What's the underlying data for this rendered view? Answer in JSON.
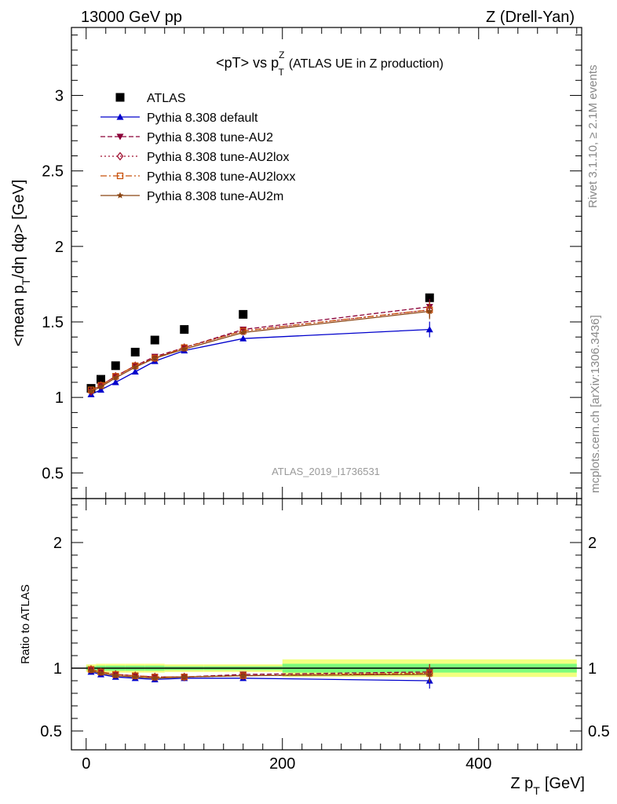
{
  "header": {
    "left": "13000 GeV pp",
    "right": "Z (Drell-Yan)"
  },
  "side": {
    "rivet": "Rivet 3.1.10, ≥ 2.1M events",
    "mcplots": "mcplots.cern.ch [arXiv:1306.3436]"
  },
  "watermark": "ATLAS_2019_I1736531",
  "colors": {
    "atlas": "#000000",
    "default": "#0000cc",
    "au2": "#8b0038",
    "au2lox": "#a01030",
    "au2loxx": "#c8500a",
    "au2m": "#8b4513",
    "band_inner": "#7cfc7c",
    "band_outer": "#f2ff80"
  },
  "chart_data": [
    {
      "type": "scatter",
      "title": "<pT> vs p_T^Z (ATLAS UE in Z production)",
      "title_main": "<pT> vs p",
      "title_sup": "Z",
      "title_sub": "T",
      "title_rest": "(ATLAS UE in Z production)",
      "ylabel": "<mean p_T/dη dφ> [GeV]",
      "ylabel_a": "<mean p",
      "ylabel_sub": "T",
      "ylabel_b": "/dη dφ> [GeV]",
      "ylim": [
        0.33,
        3.45
      ],
      "xlim": [
        -15,
        505
      ],
      "yticks": [
        "0.5",
        "1",
        "1.5",
        "2",
        "2.5",
        "3"
      ],
      "legend_position": "top-left",
      "series": [
        {
          "name": "ATLAS",
          "marker": "square",
          "x": [
            5,
            15,
            30,
            50,
            70,
            100,
            160,
            350
          ],
          "y": [
            1.06,
            1.12,
            1.21,
            1.3,
            1.38,
            1.45,
            1.55,
            1.66
          ]
        },
        {
          "name": "Pythia 8.308 default",
          "marker": "triangle-up",
          "dash": "solid",
          "x": [
            5,
            15,
            30,
            50,
            70,
            100,
            160,
            350
          ],
          "y": [
            1.02,
            1.05,
            1.1,
            1.17,
            1.24,
            1.31,
            1.39,
            1.45
          ]
        },
        {
          "name": "Pythia 8.308 tune-AU2",
          "marker": "triangle-down",
          "dash": "dashed",
          "x": [
            5,
            15,
            30,
            50,
            70,
            100,
            160,
            350
          ],
          "y": [
            1.04,
            1.08,
            1.14,
            1.21,
            1.27,
            1.33,
            1.45,
            1.6
          ]
        },
        {
          "name": "Pythia 8.308 tune-AU2lox",
          "marker": "diamond",
          "dash": "dotted",
          "x": [
            5,
            15,
            30,
            50,
            70,
            100,
            160,
            350
          ],
          "y": [
            1.04,
            1.08,
            1.14,
            1.21,
            1.26,
            1.33,
            1.44,
            1.58
          ]
        },
        {
          "name": "Pythia 8.308 tune-AU2loxx",
          "marker": "square-open",
          "dash": "dashdot",
          "x": [
            5,
            15,
            30,
            50,
            70,
            100,
            160,
            350
          ],
          "y": [
            1.05,
            1.08,
            1.14,
            1.21,
            1.26,
            1.33,
            1.44,
            1.58
          ]
        },
        {
          "name": "Pythia 8.308 tune-AU2m",
          "marker": "star",
          "dash": "solid",
          "x": [
            5,
            15,
            30,
            50,
            70,
            100,
            160,
            350
          ],
          "y": [
            1.04,
            1.07,
            1.13,
            1.2,
            1.26,
            1.32,
            1.43,
            1.57
          ]
        }
      ]
    },
    {
      "type": "scatter",
      "ylabel": "Ratio to ATLAS",
      "xlabel": "Z p_T [GeV]",
      "xlabel_a": "Z p",
      "xlabel_sub": "T",
      "xlabel_b": "[GeV]",
      "ylim": [
        0.35,
        2.35
      ],
      "xlim": [
        -15,
        505
      ],
      "yticks": [
        "0.5",
        "1",
        "2"
      ],
      "xticks": [
        "0",
        "200",
        "400"
      ],
      "band": [
        {
          "x0": 0,
          "x1": 10,
          "inner": 0.015,
          "outer": 0.03
        },
        {
          "x0": 10,
          "x1": 20,
          "inner": 0.02,
          "outer": 0.035
        },
        {
          "x0": 20,
          "x1": 40,
          "inner": 0.02,
          "outer": 0.035
        },
        {
          "x0": 40,
          "x1": 60,
          "inner": 0.02,
          "outer": 0.035
        },
        {
          "x0": 60,
          "x1": 80,
          "inner": 0.02,
          "outer": 0.035
        },
        {
          "x0": 80,
          "x1": 120,
          "inner": 0.015,
          "outer": 0.03
        },
        {
          "x0": 120,
          "x1": 200,
          "inner": 0.015,
          "outer": 0.03
        },
        {
          "x0": 200,
          "x1": 500,
          "inner": 0.035,
          "outer": 0.07
        }
      ],
      "series": [
        {
          "name": "Pythia 8.308 default",
          "x": [
            5,
            15,
            30,
            50,
            70,
            100,
            160,
            350
          ],
          "y": [
            0.97,
            0.95,
            0.93,
            0.92,
            0.91,
            0.92,
            0.92,
            0.9
          ]
        },
        {
          "name": "Pythia 8.308 tune-AU2",
          "x": [
            5,
            15,
            30,
            50,
            70,
            100,
            160,
            350
          ],
          "y": [
            0.99,
            0.97,
            0.95,
            0.94,
            0.93,
            0.93,
            0.95,
            0.97
          ]
        },
        {
          "name": "Pythia 8.308 tune-AU2lox",
          "x": [
            5,
            15,
            30,
            50,
            70,
            100,
            160,
            350
          ],
          "y": [
            0.99,
            0.97,
            0.95,
            0.94,
            0.93,
            0.93,
            0.94,
            0.96
          ]
        },
        {
          "name": "Pythia 8.308 tune-AU2loxx",
          "x": [
            5,
            15,
            30,
            50,
            70,
            100,
            160,
            350
          ],
          "y": [
            0.99,
            0.97,
            0.95,
            0.94,
            0.93,
            0.93,
            0.94,
            0.96
          ]
        },
        {
          "name": "Pythia 8.308 tune-AU2m",
          "x": [
            5,
            15,
            30,
            50,
            70,
            100,
            160,
            350
          ],
          "y": [
            0.98,
            0.96,
            0.94,
            0.93,
            0.92,
            0.93,
            0.94,
            0.95
          ]
        }
      ]
    }
  ]
}
